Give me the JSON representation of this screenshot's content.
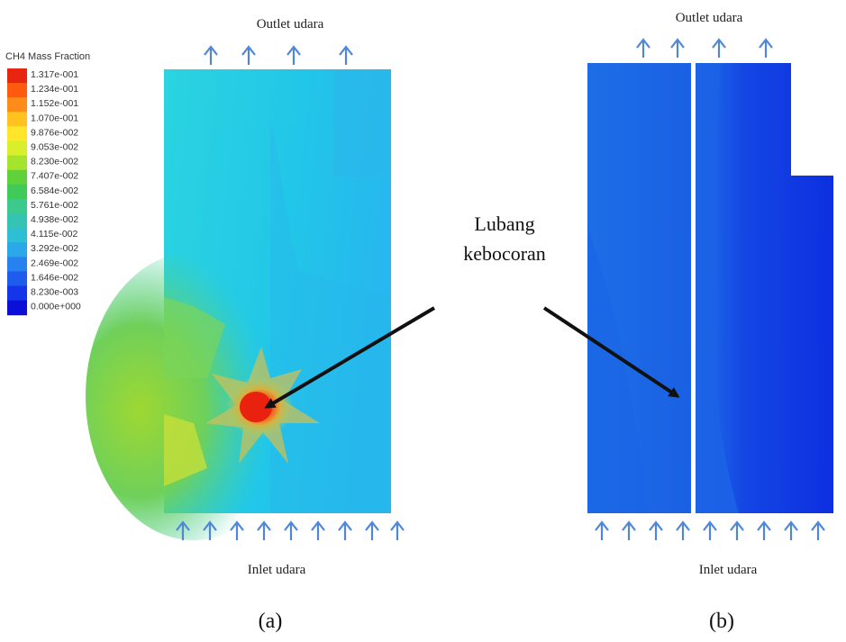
{
  "legend": {
    "title": "CH4 Mass Fraction",
    "values": [
      "1.317e-001",
      "1.234e-001",
      "1.152e-001",
      "1.070e-001",
      "9.876e-002",
      "9.053e-002",
      "8.230e-002",
      "7.407e-002",
      "6.584e-002",
      "5.761e-002",
      "4.938e-002",
      "4.115e-002",
      "3.292e-002",
      "2.469e-002",
      "1.646e-002",
      "8.230e-003",
      "0.000e+000"
    ],
    "colors": [
      "#e8250e",
      "#ff5a10",
      "#ff8c1a",
      "#ffc21f",
      "#ffe62a",
      "#d9ef2c",
      "#a6e32c",
      "#5fd13a",
      "#3fca5a",
      "#3cc98e",
      "#35c4b4",
      "#2fbfd4",
      "#2aa8ea",
      "#2582ef",
      "#1e5cee",
      "#1535e8",
      "#0a10d8"
    ]
  },
  "panel_a": {
    "outlet_label": "Outlet udara",
    "inlet_label": "Inlet udara",
    "caption": "(a)"
  },
  "panel_b": {
    "outlet_label": "Outlet udara",
    "inlet_label": "Inlet udara",
    "caption": "(b)"
  },
  "annotation": {
    "line1": "Lubang",
    "line2": "kebocoran"
  }
}
